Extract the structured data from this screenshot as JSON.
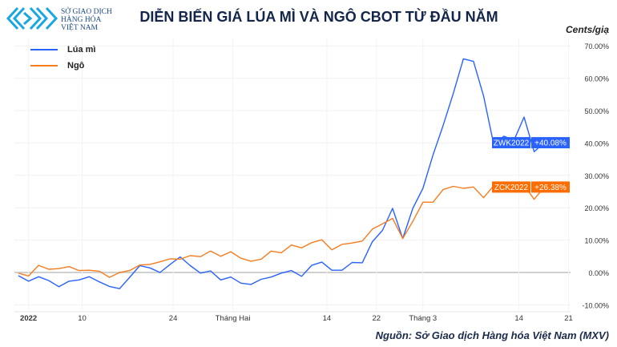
{
  "header": {
    "logo_text": [
      "SỞ GIAO DỊCH",
      "HÀNG HÓA",
      "VIỆT NAM"
    ],
    "title": "DIỄN BIẾN GIÁ LÚA MÌ VÀ NGÔ CBOT TỪ ĐẦU NĂM",
    "unit": "Cents/giạ"
  },
  "footer": {
    "source": "Nguồn: Sở Giao dịch Hàng hóa Việt Nam (MXV)"
  },
  "chart_data": {
    "type": "line",
    "title": "DIỄN BIẾN GIÁ LÚA MÌ VÀ NGÔ CBOT TỪ ĐẦU NĂM",
    "ylabel": "Cents/giạ",
    "ylim": [
      -10,
      70
    ],
    "y_ticks": [
      "-10.00%",
      "0.00%",
      "10.00%",
      "20.00%",
      "30.00%",
      "40.00%",
      "50.00%",
      "60.00%",
      "70.00%"
    ],
    "y_tick_values": [
      -10,
      0,
      10,
      20,
      30,
      40,
      50,
      60,
      70
    ],
    "x_ticks": [
      {
        "label": "2022",
        "x": 1
      },
      {
        "label": "10",
        "x": 6.3
      },
      {
        "label": "24",
        "x": 15.3
      },
      {
        "label": "Tháng Hai",
        "x": 21.2
      },
      {
        "label": "14",
        "x": 30.5
      },
      {
        "label": "22",
        "x": 35.4
      },
      {
        "label": "Tháng 3",
        "x": 40
      },
      {
        "label": "14",
        "x": 49.5
      },
      {
        "label": "21",
        "x": 54.4
      }
    ],
    "grid": true,
    "legend": "top-left",
    "series": [
      {
        "name": "Lúa mì",
        "ticker": "ZWK2022",
        "last_label": "+40.08%",
        "color": "#2962ff",
        "values": [
          -1.0,
          -2.7,
          -1.3,
          -2.5,
          -4.4,
          -2.7,
          -2.3,
          -1.3,
          -2.9,
          -4.3,
          -5.0,
          -1.5,
          2.1,
          1.4,
          0.0,
          2.5,
          4.8,
          2.1,
          -0.2,
          0.5,
          -2.3,
          -1.4,
          -3.3,
          -3.7,
          -2.1,
          -1.4,
          -0.2,
          0.6,
          -1.2,
          2.2,
          3.2,
          0.7,
          0.7,
          3.1,
          3.0,
          9.5,
          13.0,
          19.8,
          10.5,
          19.8,
          26.0,
          36.3,
          45.4,
          55.3,
          66.0,
          65.2,
          54.5,
          39.6,
          42.1,
          40.8,
          48.0,
          37.3,
          40.08
        ]
      },
      {
        "name": "Ngô",
        "ticker": "ZCK2022",
        "last_label": "+26.38%",
        "color": "#f57c1f",
        "values": [
          -0.2,
          -1.1,
          2.2,
          1.0,
          1.2,
          1.8,
          0.6,
          0.7,
          0.4,
          -1.5,
          0.0,
          0.6,
          2.3,
          2.5,
          3.3,
          4.2,
          4.1,
          5.2,
          4.9,
          6.6,
          5.0,
          6.4,
          4.4,
          3.5,
          4.1,
          6.6,
          6.1,
          8.5,
          7.6,
          9.2,
          10.1,
          7.0,
          8.7,
          9.1,
          9.7,
          13.4,
          15.0,
          16.7,
          10.5,
          15.8,
          21.7,
          21.7,
          25.6,
          26.6,
          26.0,
          26.4,
          23.1,
          26.8,
          28.0,
          25.6,
          27.0,
          22.6,
          26.38
        ]
      }
    ]
  }
}
